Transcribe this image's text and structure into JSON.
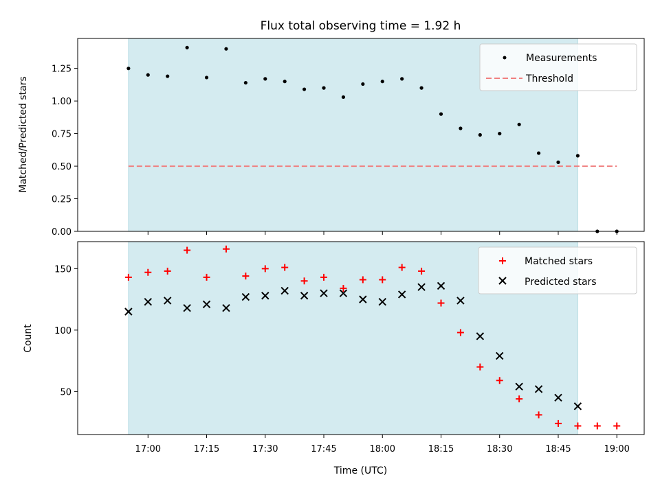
{
  "chart_data": {
    "type": "scatter",
    "title": "Flux total observing time = 1.92 h",
    "xlabel": "Time (UTC)",
    "x_tick_labels": [
      "17:00",
      "17:15",
      "17:30",
      "17:45",
      "18:00",
      "18:15",
      "18:30",
      "18:45",
      "19:00"
    ],
    "x_tick_minutes": [
      1020,
      1035,
      1050,
      1065,
      1080,
      1095,
      1110,
      1125,
      1140
    ],
    "xlim_minutes": [
      1002,
      1147
    ],
    "times": [
      "16:55",
      "17:00",
      "17:05",
      "17:10",
      "17:15",
      "17:20",
      "17:25",
      "17:30",
      "17:35",
      "17:40",
      "17:45",
      "17:50",
      "17:55",
      "18:00",
      "18:05",
      "18:10",
      "18:15",
      "18:20",
      "18:25",
      "18:30",
      "18:35",
      "18:40",
      "18:45",
      "18:50",
      "18:55",
      "19:00"
    ],
    "times_minutes": [
      1015,
      1020,
      1025,
      1030,
      1035,
      1040,
      1045,
      1050,
      1055,
      1060,
      1065,
      1070,
      1075,
      1080,
      1085,
      1090,
      1095,
      1100,
      1105,
      1110,
      1115,
      1120,
      1125,
      1130,
      1135,
      1140
    ],
    "shaded_span": {
      "start": "16:55",
      "end": "18:50",
      "start_minutes": 1015,
      "end_minutes": 1130,
      "color": "#d4ebf0",
      "edge": "#b8dce4"
    },
    "top": {
      "ylabel": "Matched/Predicted stars",
      "ylim": [
        0,
        1.48
      ],
      "y_ticks": [
        0.0,
        0.25,
        0.5,
        0.75,
        1.0,
        1.25
      ],
      "y_tick_labels": [
        "0.00",
        "0.25",
        "0.50",
        "0.75",
        "1.00",
        "1.25"
      ],
      "series": [
        {
          "name": "Measurements",
          "marker": "dot",
          "color": "#000000",
          "values": [
            1.25,
            1.2,
            1.19,
            1.41,
            1.18,
            1.4,
            1.14,
            1.17,
            1.15,
            1.09,
            1.1,
            1.03,
            1.13,
            1.15,
            1.17,
            1.1,
            0.9,
            0.79,
            0.74,
            0.75,
            0.82,
            0.6,
            0.53,
            0.58,
            0.0,
            0.0
          ]
        }
      ],
      "threshold": {
        "name": "Threshold",
        "value": 0.5,
        "color": "#f08080",
        "x_start": "16:55",
        "x_end": "19:00"
      },
      "legend": {
        "placement": "upper right",
        "entries": [
          "Measurements",
          "Threshold"
        ]
      }
    },
    "bottom": {
      "ylabel": "Count",
      "ylim": [
        15,
        172
      ],
      "y_ticks": [
        50,
        100,
        150
      ],
      "y_tick_labels": [
        "50",
        "100",
        "150"
      ],
      "series": [
        {
          "name": "Matched stars",
          "marker": "plus",
          "color": "#ff0000",
          "values": [
            143,
            147,
            148,
            165,
            143,
            166,
            144,
            150,
            151,
            140,
            143,
            134,
            141,
            141,
            151,
            148,
            122,
            98,
            70,
            59,
            44,
            31,
            24,
            22,
            22,
            22
          ]
        },
        {
          "name": "Predicted stars",
          "marker": "x",
          "color": "#000000",
          "values": [
            115,
            123,
            124,
            118,
            121,
            118,
            127,
            128,
            132,
            128,
            130,
            130,
            125,
            123,
            129,
            135,
            136,
            124,
            95,
            79,
            54,
            52,
            45,
            38,
            null,
            null
          ]
        }
      ],
      "legend": {
        "placement": "upper right",
        "entries": [
          "Matched stars",
          "Predicted stars"
        ]
      }
    }
  }
}
